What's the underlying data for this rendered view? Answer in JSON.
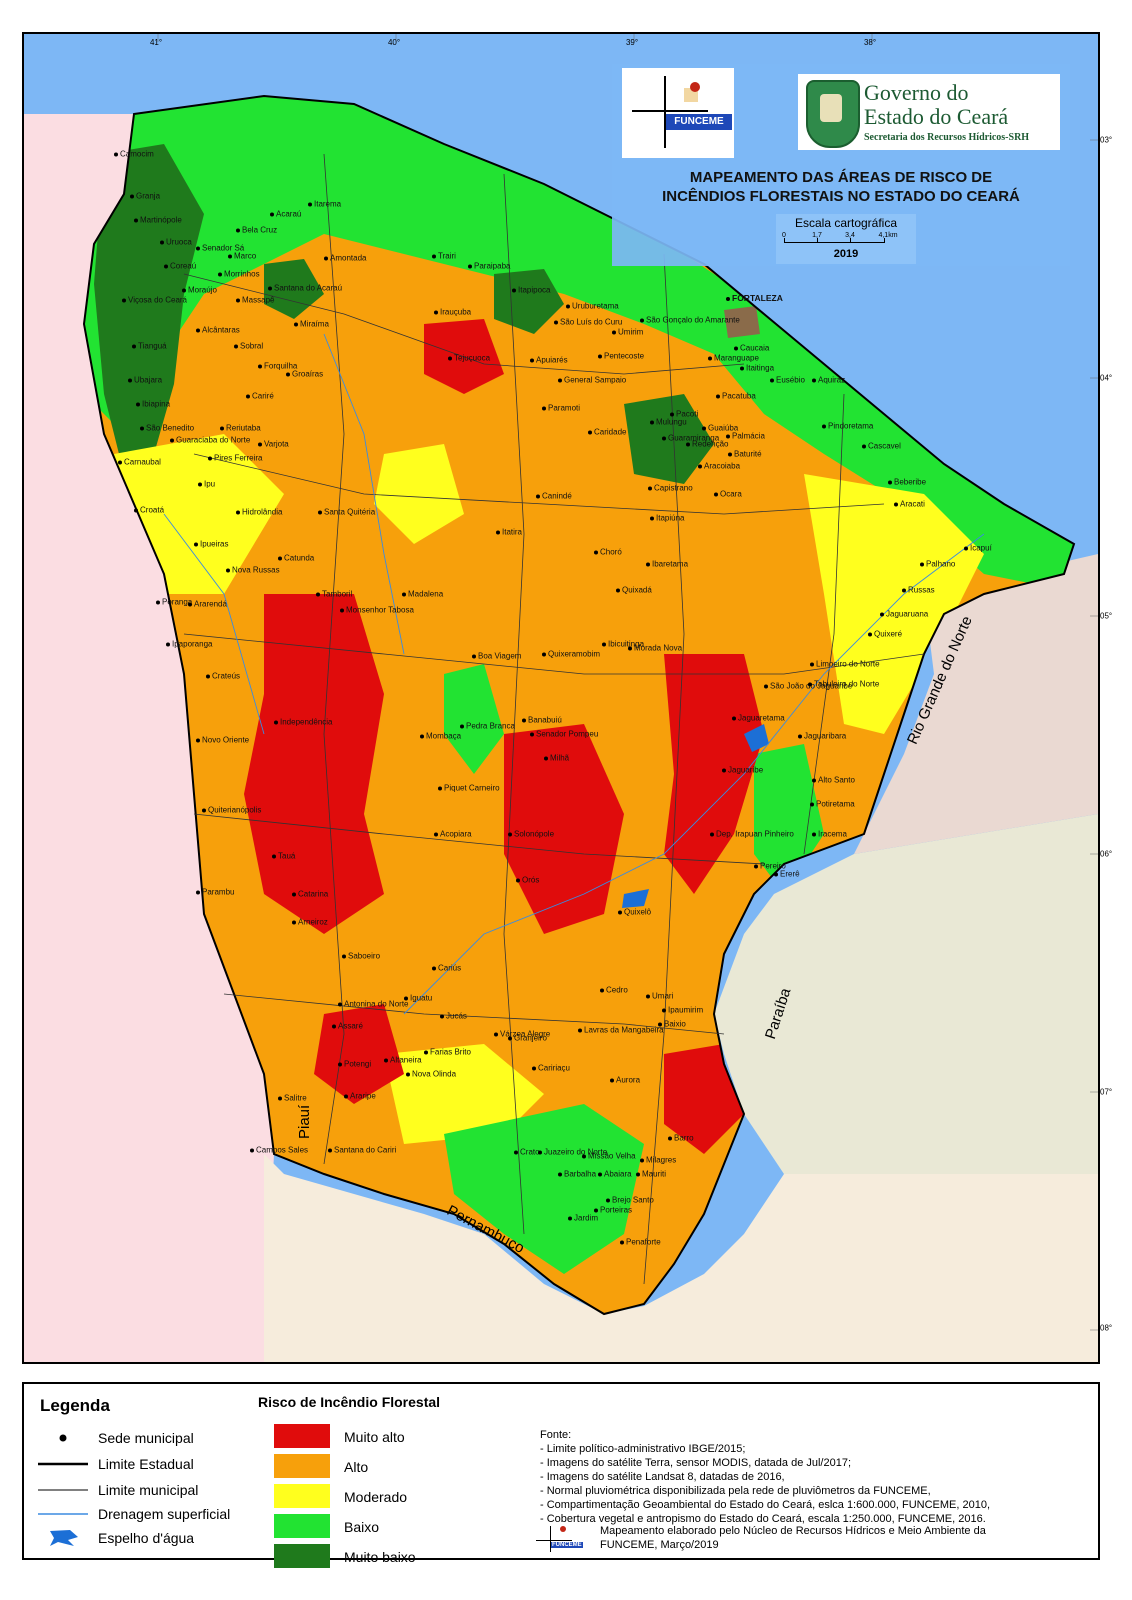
{
  "map": {
    "longitude_ticks": [
      "41°",
      "40°",
      "39°",
      "38°"
    ],
    "latitude_ticks": [
      "03°",
      "04°",
      "05°",
      "06°",
      "07°",
      "08°"
    ],
    "neighbor_states": {
      "rio_grande_do_norte": "Rio Grande do Norte",
      "paraiba": "Paraíba",
      "piaui": "Piauí",
      "pernambuco": "Pernambuco"
    },
    "capital": "FORTALEZA",
    "municipalities": [
      "Camocim",
      "Granja",
      "Martinópole",
      "Uruoca",
      "Senador Sá",
      "Morrinhos",
      "Marco",
      "Bela Cruz",
      "Acaraú",
      "Itarema",
      "Amontada",
      "Trairi",
      "Paraipaba",
      "Itapipoca",
      "Uruburetama",
      "Umirim",
      "São Gonçalo do Amarante",
      "Coreaú",
      "Moraújo",
      "Massapê",
      "Santana do Acaraú",
      "Miraíma",
      "Viçosa do Ceará",
      "Tianguá",
      "Ubajara",
      "Ibiapina",
      "São Benedito",
      "Guaraciaba do Norte",
      "Carnaubal",
      "Croatá",
      "Alcântaras",
      "Sobral",
      "Forquilha",
      "Groaíras",
      "Cariré",
      "Reriutaba",
      "Varjota",
      "Pires Ferreira",
      "Ipu",
      "Hidrolândia",
      "Santa Quitéria",
      "Ipueiras",
      "Nova Russas",
      "Catunda",
      "Poranga",
      "Ararendá",
      "Ipaporanga",
      "Tamboril",
      "Monsenhor Tabosa",
      "Crateús",
      "Independência",
      "Novo Oriente",
      "Quiterianópolis",
      "Tauá",
      "Parambu",
      "Arneiroz",
      "Catarina",
      "Saboeiro",
      "Antonina do Norte",
      "Assaré",
      "Potengi",
      "Araripe",
      "Salitre",
      "Campos Sales",
      "Santana do Cariri",
      "Nova Olinda",
      "Altaneira",
      "Farias Brito",
      "Crato",
      "Juazeiro do Norte",
      "Barbalha",
      "Missão Velha",
      "Jardim",
      "Porteiras",
      "Brejo Santo",
      "Mauriti",
      "Milagres",
      "Abaiara",
      "Penaforte",
      "Barro",
      "Aurora",
      "Caririaçu",
      "Granjeiro",
      "Várzea Alegre",
      "Lavras da Mangabeira",
      "Cedro",
      "Ipaumirim",
      "Umari",
      "Baixio",
      "Iguatu",
      "Jucás",
      "Cariús",
      "Quixelô",
      "Orós",
      "Acopiara",
      "Piquet Carneiro",
      "Mombaça",
      "Pedra Branca",
      "Senador Pompeu",
      "Milhã",
      "Solonópole",
      "Dep. Irapuan Pinheiro",
      "Jaguaribe",
      "Jaguaribara",
      "Alto Santo",
      "Potiretama",
      "Iracema",
      "Ererê",
      "Pereiro",
      "Jaguaretama",
      "São João do Jaguaribe",
      "Tabuleiro do Norte",
      "Limoeiro do Norte",
      "Quixeré",
      "Russas",
      "Jaguaruana",
      "Palhano",
      "Icapuí",
      "Aracati",
      "Beberibe",
      "Cascavel",
      "Pindoretama",
      "Aquiraz",
      "Eusébio",
      "Itaitinga",
      "Maranguape",
      "Caucaia",
      "Pacatuba",
      "Guaiúba",
      "Redenção",
      "Baturité",
      "Aracoiaba",
      "Capistrano",
      "Itapiúna",
      "Ocara",
      "Choró",
      "Ibaretama",
      "Quixadá",
      "Quixeramobim",
      "Banabuiú",
      "Morada Nova",
      "Ibicuitinga",
      "Boa Viagem",
      "Madalena",
      "Itatira",
      "Canindé",
      "Caridade",
      "Paramoti",
      "General Sampaio",
      "Apuiarés",
      "Tejuçuoca",
      "Irauçuba",
      "Pentecoste",
      "São Luís do Curu",
      "Mulungu",
      "Pacoti",
      "Guaramiranga",
      "Palmácia"
    ]
  },
  "header": {
    "funceme_wordmark": "FUNCEME",
    "gov_line1": "Governo do",
    "gov_line2": "Estado do Ceará",
    "gov_subtitle": "Secretaria dos Recursos Hídricos-SRH",
    "title_line1": "MAPEAMENTO DAS ÁREAS DE RISCO DE",
    "title_line2": "INCÊNDIOS FLORESTAIS NO ESTADO DO CEARÁ",
    "scale_title": "Escala cartográfica",
    "scale_ticks": [
      "0",
      "1,7",
      "3,4",
      "4,1km"
    ],
    "year": "2019"
  },
  "legend": {
    "title": "Legenda",
    "symbols": [
      {
        "label": "Sede municipal"
      },
      {
        "label": "Limite Estadual"
      },
      {
        "label": "Limite municipal"
      },
      {
        "label": "Drenagem superficial"
      },
      {
        "label": "Espelho d'água"
      }
    ],
    "risk_title": "Risco de Incêndio Florestal",
    "risk_classes": [
      {
        "label": "Muito alto",
        "color": "#e00c0c"
      },
      {
        "label": "Alto",
        "color": "#f7a00b"
      },
      {
        "label": "Moderado",
        "color": "#ffff1e"
      },
      {
        "label": "Baixo",
        "color": "#22e332"
      },
      {
        "label": "Muito baixo",
        "color": "#1f7a1c"
      }
    ],
    "sources_title": "Fonte:",
    "sources": [
      "- Limite político-administrativo IBGE/2015;",
      "- Imagens do satélite Terra, sensor MODIS, datada de Jul/2017;",
      "- Imagens do satélite Landsat 8, datadas de 2016,",
      "- Normal pluviométrica disponibilizada pela rede de pluviômetros da FUNCEME,",
      "- Compartimentação Geoambiental do Estado do Ceará, eslca 1:600.000, FUNCEME, 2010,",
      "- Cobertura vegetal e antropismo do Estado do Ceará, escala 1:250.000, FUNCEME, 2016."
    ],
    "credit_line1": "Mapeamento elaborado pelo Núcleo de Recursos Hídricos e Meio Ambiente da",
    "credit_line2": "FUNCEME, Março/2019"
  },
  "colors": {
    "ocean": "#7db7f5",
    "piaui": "#fbdde2",
    "rio_grande_do_norte": "#ead9d2",
    "paraiba": "#e9e8d5",
    "pernambuco": "#f6ecdc"
  }
}
